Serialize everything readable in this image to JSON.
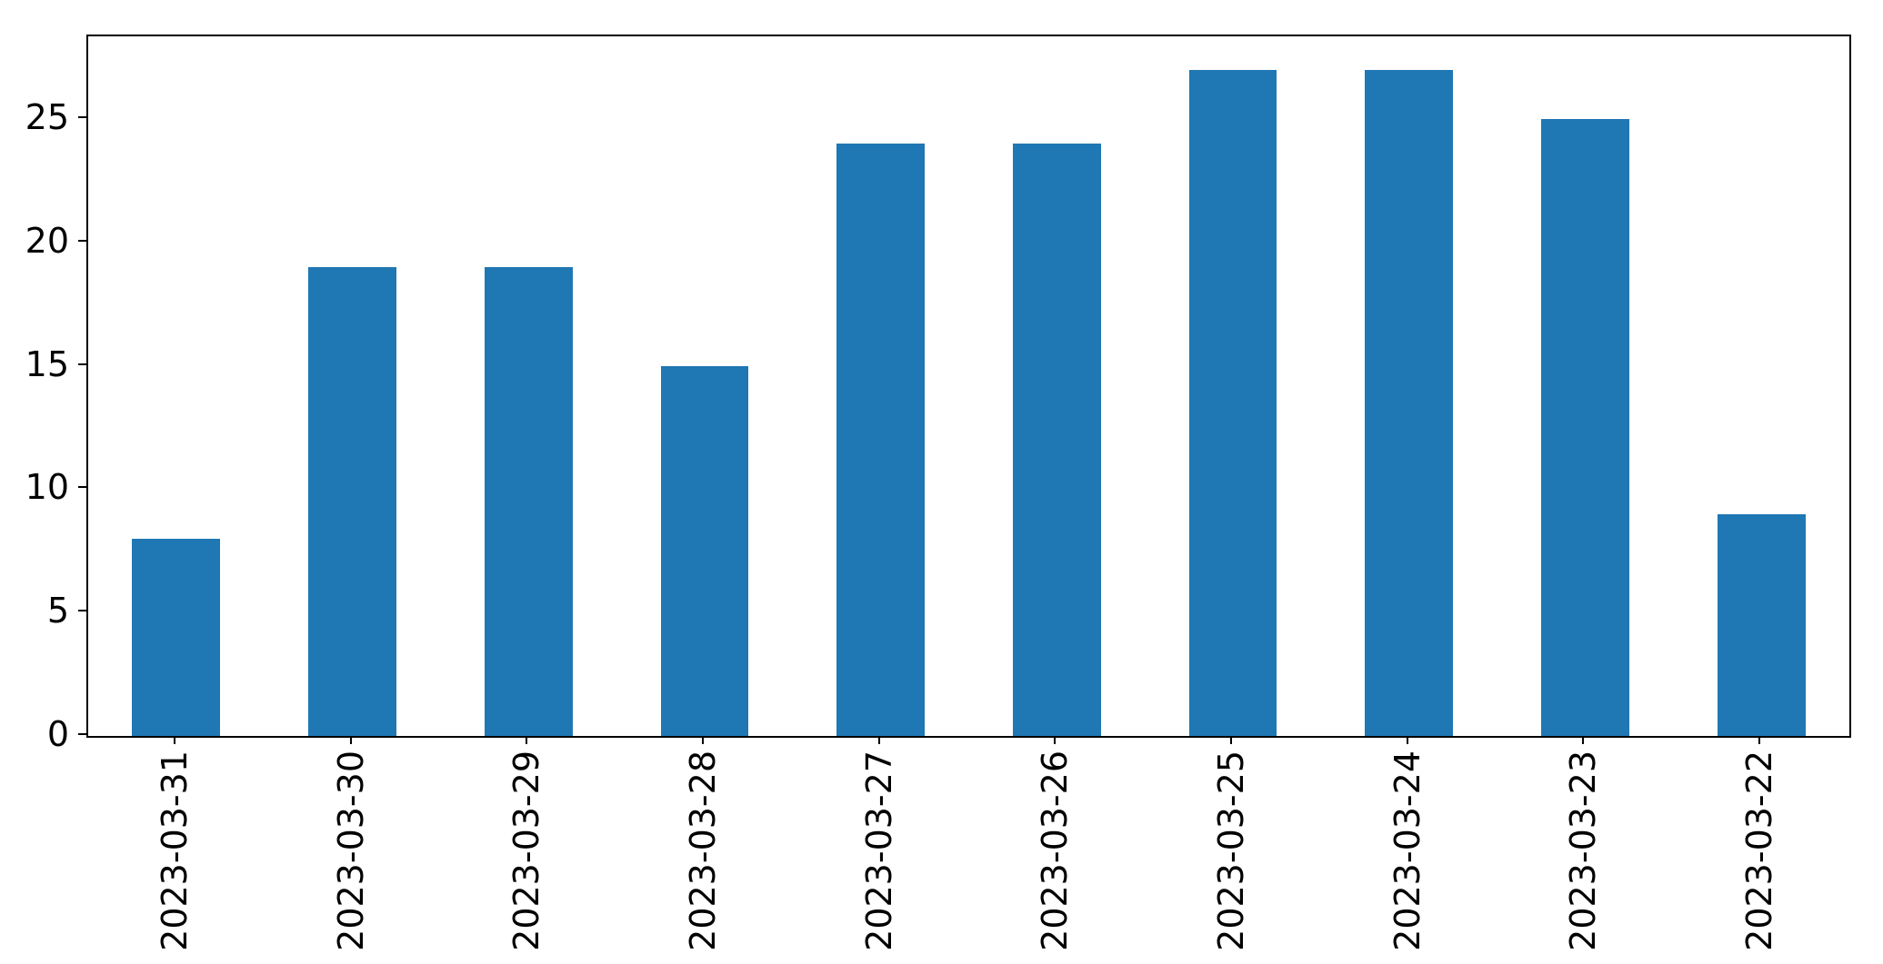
{
  "chart_data": {
    "type": "bar",
    "title": "",
    "xlabel": "",
    "ylabel": "",
    "categories": [
      "2023-03-31",
      "2023-03-30",
      "2023-03-29",
      "2023-03-28",
      "2023-03-27",
      "2023-03-26",
      "2023-03-25",
      "2023-03-24",
      "2023-03-23",
      "2023-03-22"
    ],
    "values": [
      8,
      19,
      19,
      15,
      24,
      24,
      27,
      27,
      25,
      9
    ],
    "ylim": [
      0,
      28.35
    ],
    "yticks": [
      "0",
      "5",
      "10",
      "15",
      "20",
      "25"
    ],
    "ytick_values": [
      0,
      5,
      10,
      15,
      20,
      25
    ],
    "xtick_rotation_deg": 90,
    "bar_width_fraction": 0.5,
    "grid": false,
    "legend": null,
    "colors": {
      "bar": "#1f77b4",
      "axis": "#000000",
      "text": "#000000",
      "background": "#ffffff"
    }
  }
}
